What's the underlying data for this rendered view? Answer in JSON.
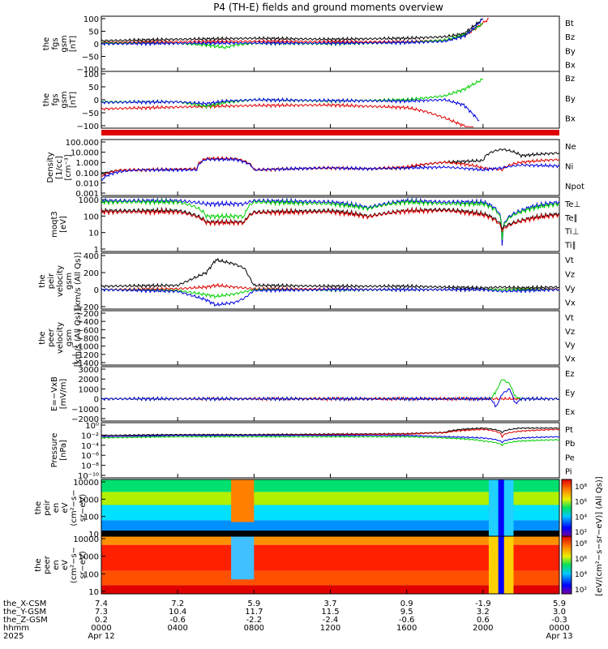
{
  "title": "P4 (TH-E) fields and ground moments overview",
  "colors": {
    "black": "#000000",
    "red": "#e00000",
    "green": "#00d000",
    "blue": "#0000e0"
  },
  "chart_data": {
    "type": "line",
    "x_ticks": {
      "labels": [
        [
          "7.4",
          "7.3",
          "0.2",
          "0000",
          "Apr 12"
        ],
        [
          "7.2",
          "10.4",
          "-0.6",
          "0400",
          ""
        ],
        [
          "5.9",
          "11.7",
          "-2.2",
          "0800",
          ""
        ],
        [
          "3.7",
          "11.5",
          "-2.4",
          "1200",
          ""
        ],
        [
          "0.9",
          "9.5",
          "-0.6",
          "1600",
          ""
        ],
        [
          "-1.9",
          "3.2",
          "0.6",
          "2000",
          ""
        ],
        [
          "5.9",
          "3.0",
          "-0.3",
          "0000",
          "Apr 13"
        ]
      ],
      "row_labels": [
        "the_X-CSM",
        "the_Y-GSM",
        "the_Z-GSM",
        "hhmm",
        "2025"
      ],
      "hours": [
        0,
        4,
        8,
        12,
        16,
        20,
        24
      ]
    },
    "panels": [
      {
        "ylabel": [
          "the",
          "fgs",
          "gsm",
          "[nT]"
        ],
        "yticks": [
          "100",
          "50",
          "0",
          "−50",
          "−100"
        ],
        "legend": [
          "Bt",
          "Bz",
          "By",
          "Bx"
        ],
        "series": [
          {
            "name": "Bt",
            "color": "black",
            "x": [
              0,
              2,
              4,
              6,
              8,
              10,
              12,
              14,
              16,
              18,
              19,
              19.5,
              20
            ],
            "y": [
              12,
              15,
              18,
              20,
              22,
              20,
              18,
              20,
              22,
              28,
              40,
              70,
              100
            ]
          },
          {
            "name": "Bz",
            "color": "red",
            "x": [
              0,
              4,
              8,
              12,
              16,
              18,
              19,
              19.6,
              20.3
            ],
            "y": [
              5,
              8,
              10,
              8,
              8,
              15,
              30,
              60,
              100
            ]
          },
          {
            "name": "By",
            "color": "green",
            "x": [
              0,
              4,
              5.5,
              6.5,
              7,
              8,
              12,
              16,
              18,
              19,
              20
            ],
            "y": [
              3,
              2,
              -5,
              -15,
              -5,
              2,
              0,
              5,
              15,
              35,
              80
            ]
          },
          {
            "name": "Bx",
            "color": "blue",
            "x": [
              0,
              4,
              8,
              12,
              16,
              18,
              19,
              19.5,
              20
            ],
            "y": [
              0,
              2,
              3,
              2,
              5,
              10,
              30,
              60,
              100
            ]
          }
        ]
      },
      {
        "ylabel": [
          "the",
          "fgs",
          "gsm",
          "[nT]"
        ],
        "yticks": [
          "100",
          "50",
          "0",
          "−50",
          "−100"
        ],
        "legend": [
          "Bz",
          "By",
          "Bx"
        ],
        "series": [
          {
            "name": "Bz",
            "color": "red",
            "x": [
              0,
              4,
              8,
              12,
              16,
              17,
              18,
              19,
              19.5
            ],
            "y": [
              -35,
              -28,
              -22,
              -20,
              -30,
              -45,
              -70,
              -100,
              -120
            ]
          },
          {
            "name": "By",
            "color": "green",
            "x": [
              0,
              4,
              5.5,
              6.5,
              8,
              12,
              16,
              18,
              19,
              20
            ],
            "y": [
              -8,
              -8,
              -25,
              -10,
              0,
              -5,
              0,
              15,
              40,
              80
            ]
          },
          {
            "name": "Bx",
            "color": "blue",
            "x": [
              0,
              4,
              5.5,
              6.5,
              8,
              12,
              16,
              18,
              19,
              19.8
            ],
            "y": [
              -10,
              -8,
              -15,
              -5,
              0,
              -3,
              -5,
              0,
              -20,
              -80
            ]
          }
        ]
      },
      {
        "ylabel": [
          "Density",
          "[1/cc]",
          "[cm⁻³]"
        ],
        "yticks": [
          "100.000",
          "10.000",
          "1.000",
          "0.100",
          "0.010",
          "0.001"
        ],
        "legend": [
          "Ne",
          "Ni",
          "Npot"
        ],
        "log": [
          0.001,
          300
        ],
        "series": [
          {
            "name": "Ni",
            "color": "black",
            "x": [
              0,
              1,
              2,
              5,
              5.5,
              7,
              8,
              12,
              14,
              16,
              18,
              20,
              21,
              22,
              24
            ],
            "y": [
              0.1,
              0.3,
              0.3,
              0.4,
              5,
              5,
              0.3,
              0.5,
              0.4,
              0.5,
              2,
              3,
              50,
              10,
              20
            ]
          },
          {
            "name": "Ne",
            "color": "red",
            "x": [
              0,
              1,
              2,
              5,
              5.5,
              7,
              8,
              12,
              14,
              16,
              18,
              20,
              21,
              22,
              24
            ],
            "y": [
              0.05,
              0.3,
              0.3,
              0.4,
              5,
              5,
              0.3,
              0.5,
              0.4,
              0.6,
              2,
              0.5,
              0.3,
              2,
              4
            ]
          },
          {
            "name": "Npot",
            "color": "blue",
            "x": [
              0,
              1,
              2,
              5,
              5.5,
              7,
              8,
              12,
              14,
              16,
              18,
              20,
              21,
              22,
              24
            ],
            "y": [
              0.02,
              0.2,
              0.3,
              0.3,
              4,
              4,
              0.3,
              0.5,
              0.4,
              0.5,
              0.6,
              0.3,
              0.5,
              1,
              0.8
            ]
          }
        ]
      },
      {
        "ylabel": [
          "moqt3",
          "[eV]"
        ],
        "yticks": [
          "1000",
          "100",
          "10",
          "1"
        ],
        "legend": [
          "Te⊥",
          "Te∥",
          "Ti⊥",
          "Ti∥"
        ],
        "log": [
          1,
          3000
        ],
        "series": [
          {
            "name": "Ti⊥",
            "color": "blue",
            "x": [
              0,
              4,
              5.5,
              7.5,
              8,
              12,
              14,
              16,
              18,
              20,
              21,
              22,
              24
            ],
            "y": [
              2500,
              2500,
              1500,
              1500,
              2500,
              2000,
              800,
              2500,
              2000,
              2000,
              2,
              500,
              2000
            ]
          },
          {
            "name": "Ti∥",
            "color": "green",
            "x": [
              0,
              4,
              5.5,
              7.5,
              8,
              12,
              14,
              16,
              18,
              20,
              21,
              22,
              24
            ],
            "y": [
              2000,
              2000,
              200,
              200,
              2000,
              1500,
              700,
              2000,
              1500,
              1500,
              5,
              400,
              1500
            ]
          },
          {
            "name": "Te∥",
            "color": "black",
            "x": [
              0,
              4,
              5.5,
              7.5,
              8,
              12,
              14,
              16,
              18,
              20,
              21,
              22,
              24
            ],
            "y": [
              500,
              500,
              80,
              80,
              400,
              500,
              200,
              500,
              600,
              300,
              30,
              100,
              300
            ]
          },
          {
            "name": "Te⊥",
            "color": "red",
            "x": [
              0,
              4,
              5.5,
              7.5,
              8,
              12,
              14,
              16,
              18,
              20,
              21,
              22,
              24
            ],
            "y": [
              400,
              400,
              70,
              70,
              350,
              400,
              180,
              450,
              500,
              250,
              20,
              90,
              250
            ]
          }
        ]
      },
      {
        "ylabel": [
          "the",
          "peir",
          "velocity",
          "gsm",
          "[km/s (All Qs)]"
        ],
        "yticks": [
          "400",
          "200",
          "0",
          "−200"
        ],
        "legend": [
          "Vt",
          "Vz",
          "Vy",
          "Vx"
        ],
        "series": [
          {
            "name": "Vt",
            "color": "black",
            "x": [
              0,
              4,
              5.5,
              6,
              7,
              7.5,
              8,
              12,
              16,
              18,
              20,
              21,
              22,
              24
            ],
            "y": [
              40,
              50,
              200,
              350,
              300,
              250,
              50,
              40,
              40,
              30,
              20,
              30,
              20,
              30
            ]
          },
          {
            "name": "Vz",
            "color": "red",
            "x": [
              0,
              4,
              5.5,
              6,
              7,
              8,
              12,
              16,
              20,
              24
            ],
            "y": [
              0,
              10,
              30,
              50,
              30,
              10,
              5,
              0,
              0,
              5
            ]
          },
          {
            "name": "Vy",
            "color": "green",
            "x": [
              0,
              4,
              5.5,
              6,
              7,
              8,
              12,
              16,
              20,
              24
            ],
            "y": [
              0,
              -10,
              -60,
              -80,
              -50,
              0,
              -5,
              0,
              0,
              0
            ]
          },
          {
            "name": "Vx",
            "color": "blue",
            "x": [
              0,
              4,
              5.5,
              6,
              7,
              7.5,
              8,
              12,
              16,
              20,
              21,
              24
            ],
            "y": [
              0,
              -20,
              -120,
              -180,
              -150,
              -100,
              -10,
              0,
              0,
              0,
              -20,
              0
            ]
          }
        ]
      },
      {
        "ylabel": [
          "the",
          "peer",
          "velocity",
          "gsm",
          "[km/s (All Qs)]"
        ],
        "yticks": [
          "−200",
          "−400",
          "−600",
          "−800",
          "−1000",
          "−1200",
          "−1400"
        ],
        "legend": [
          "Vt",
          "Vz",
          "Vy",
          "Vx"
        ],
        "series": []
      },
      {
        "ylabel": [
          "E=−VxB",
          "[mV/m]"
        ],
        "yticks": [
          "3000",
          "2000",
          "1000",
          "0",
          "−1000",
          "−2000"
        ],
        "legend": [
          "Ez",
          "Ey",
          "Ex"
        ],
        "series": [
          {
            "name": "Ez",
            "color": "red",
            "x": [
              0,
              20.6,
              21.1,
              21.5,
              24
            ],
            "y": [
              0,
              0,
              0,
              0,
              0
            ]
          },
          {
            "name": "Ey",
            "color": "green",
            "x": [
              0,
              20.4,
              20.7,
              21.0,
              21.4,
              21.7,
              22,
              24
            ],
            "y": [
              0,
              0,
              800,
              2000,
              1500,
              200,
              0,
              0
            ]
          },
          {
            "name": "Ex",
            "color": "blue",
            "x": [
              0,
              20.4,
              20.7,
              21.0,
              21.4,
              21.7,
              22,
              24
            ],
            "y": [
              0,
              0,
              -800,
              500,
              1000,
              -500,
              0,
              0
            ]
          }
        ]
      },
      {
        "ylabel": [
          "Pressure",
          "[nPa]"
        ],
        "yticks": [
          "10⁰",
          "10⁻²",
          "10⁻⁴",
          "10⁻⁶",
          "10⁻⁸",
          "10⁻¹⁰"
        ],
        "legend": [
          "Pt",
          "Pb",
          "Pe",
          "Pi"
        ],
        "log": [
          1e-11,
          5
        ],
        "series": [
          {
            "name": "Pt",
            "color": "black",
            "x": [
              0,
              4,
              8,
              12,
              16,
              18,
              20,
              21,
              22,
              24
            ],
            "y": [
              0.02,
              0.03,
              0.03,
              0.04,
              0.05,
              0.1,
              1,
              0.1,
              1,
              1
            ]
          },
          {
            "name": "Pb",
            "color": "red",
            "x": [
              0,
              4,
              8,
              12,
              16,
              18,
              20,
              21,
              22,
              24
            ],
            "y": [
              0.01,
              0.02,
              0.02,
              0.03,
              0.04,
              0.08,
              0.5,
              0.01,
              0.2,
              0.5
            ]
          },
          {
            "name": "Pe",
            "color": "green",
            "x": [
              0,
              4,
              8,
              12,
              16,
              18,
              20,
              21,
              22,
              24
            ],
            "y": [
              0.005,
              0.01,
              0.01,
              0.01,
              0.01,
              0.005,
              0.001,
              0.0001,
              0.001,
              0.002
            ]
          },
          {
            "name": "Pi",
            "color": "blue",
            "x": [
              0,
              4,
              8,
              12,
              16,
              18,
              20,
              21,
              22,
              24
            ],
            "y": [
              0.01,
              0.02,
              0.02,
              0.02,
              0.02,
              0.01,
              0.005,
              0.0005,
              0.005,
              0.01
            ]
          }
        ]
      },
      {
        "ylabel": [
          "the",
          "peir",
          "en",
          "eV",
          "(cm²−s−",
          "sr−eV)"
        ],
        "yticks": [
          "10000",
          "1000",
          "100",
          "10"
        ],
        "spectrogram": true
      },
      {
        "ylabel": [
          "the",
          "peer",
          "en",
          "eV",
          "(cm²−s−",
          "sr−eV)"
        ],
        "yticks": [
          "10000",
          "1000",
          "100",
          "10"
        ],
        "spectrogram": true
      }
    ],
    "colorbars": [
      {
        "ticks": [
          "10⁸",
          "10⁶",
          "10⁴",
          "10²"
        ]
      },
      {
        "ticks": [
          "10⁸",
          "10⁶",
          "10⁴",
          "10²"
        ]
      }
    ],
    "colorbar_label": "[eV/(cm²−s−sr−eV)] (All Qs)]"
  }
}
